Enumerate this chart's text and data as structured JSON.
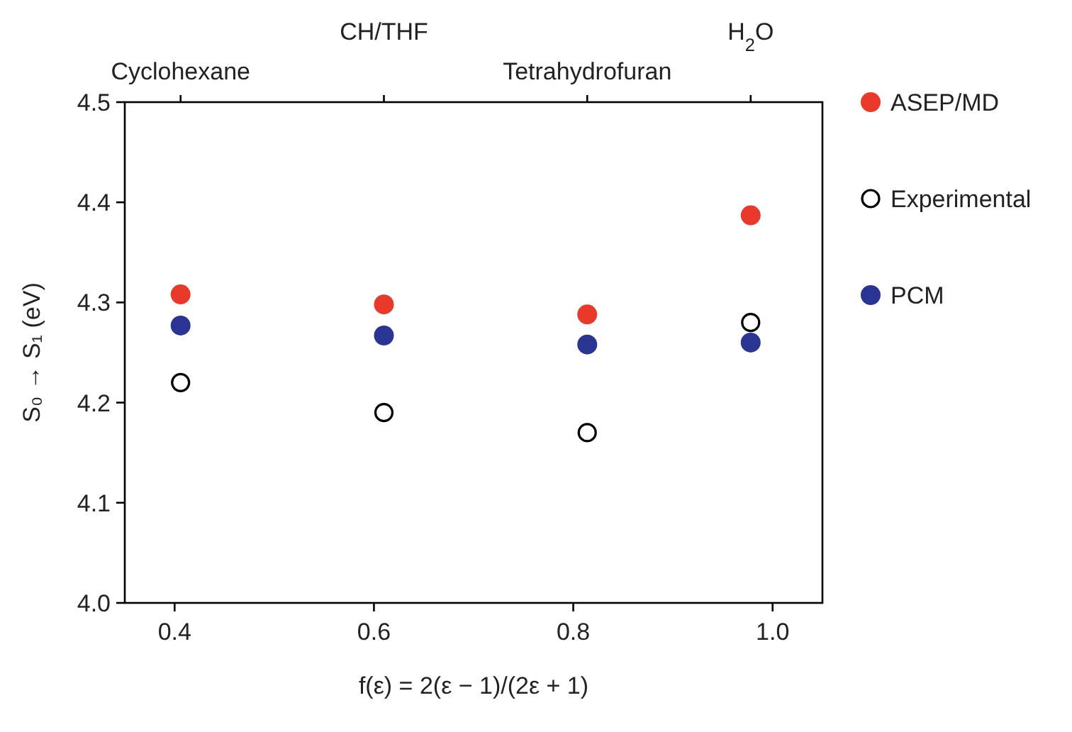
{
  "chart_data": {
    "type": "scatter",
    "xlabel": "f(ε) = 2(ε − 1)/(2ε + 1)",
    "ylabel": "S₀ → S₁ (eV)",
    "xlim": [
      0.35,
      1.05
    ],
    "xticks": [
      {
        "value": 0.4,
        "label": "0.4"
      },
      {
        "value": 0.6,
        "label": "0.6"
      },
      {
        "value": 0.8,
        "label": "0.8"
      },
      {
        "value": 1.0,
        "label": "1.0"
      }
    ],
    "annotations": [
      "Cyclohexane",
      "CH/THF",
      "Tetrahydrofuran",
      "H$_{2}$O"
    ],
    "ylim": [
      4.0,
      4.5
    ],
    "yticks": [
      {
        "value": 4.0,
        "label": "4.0"
      },
      {
        "value": 4.1,
        "label": "4.1"
      },
      {
        "value": 4.2,
        "label": "4.2"
      },
      {
        "value": 4.3,
        "label": "4.3"
      },
      {
        "value": 4.4,
        "label": "4.4"
      },
      {
        "value": 4.5,
        "label": "4.5"
      }
    ],
    "x": [
      0.406,
      0.61,
      0.814,
      0.978
    ],
    "grid": false,
    "legend": "right",
    "marker": "circle",
    "series": [
      {
        "name": "ASEP/MD",
        "color": "#e8392a",
        "values": [
          4.308,
          4.298,
          4.288,
          4.387
        ]
      },
      {
        "name": "Experimental",
        "color": "#000000",
        "marker": "circle-open",
        "values": [
          4.22,
          4.19,
          4.17,
          4.28
        ]
      },
      {
        "name": "PCM",
        "color": "#2a3593",
        "values": [
          4.277,
          4.267,
          4.258,
          4.26
        ]
      }
    ]
  }
}
